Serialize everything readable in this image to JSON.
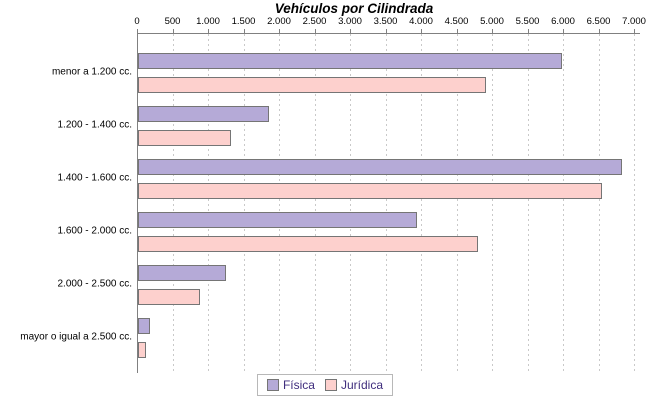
{
  "chart_data": {
    "type": "bar",
    "orientation": "horizontal",
    "title": "Vehículos por Cilindrada",
    "categories": [
      "menor a 1.200 cc.",
      "1.200 - 1.400 cc.",
      "1.400 - 1.600 cc.",
      "1.600 - 2.000 cc.",
      "2.000 - 2.500 cc.",
      "mayor o igual a 2.500 cc."
    ],
    "series": [
      {
        "name": "Física",
        "color": "#b5aad7",
        "values": [
          5940,
          1820,
          6790,
          3900,
          1210,
          140
        ]
      },
      {
        "name": "Jurídica",
        "color": "#fdd0cd",
        "values": [
          4870,
          1280,
          6500,
          4760,
          850,
          90
        ]
      }
    ],
    "xlim": [
      0,
      7000
    ],
    "x_tick_step": 500,
    "x_tick_labels": [
      "0",
      "500",
      "1.000",
      "1.500",
      "2.000",
      "2.500",
      "3.000",
      "3.500",
      "4.000",
      "4.500",
      "5.000",
      "5.500",
      "6.000",
      "6.500",
      "7.000"
    ],
    "grid": "vertical-dashed",
    "legend_position": "bottom-center"
  },
  "colors": {
    "title_text": "#000000",
    "tick_text": "#000000",
    "axis": "#808080",
    "gridline": "#c9c9c9",
    "bar_border": "#757575",
    "legend_text": "#3f2d7d",
    "legend_border": "#b8b8b8"
  }
}
